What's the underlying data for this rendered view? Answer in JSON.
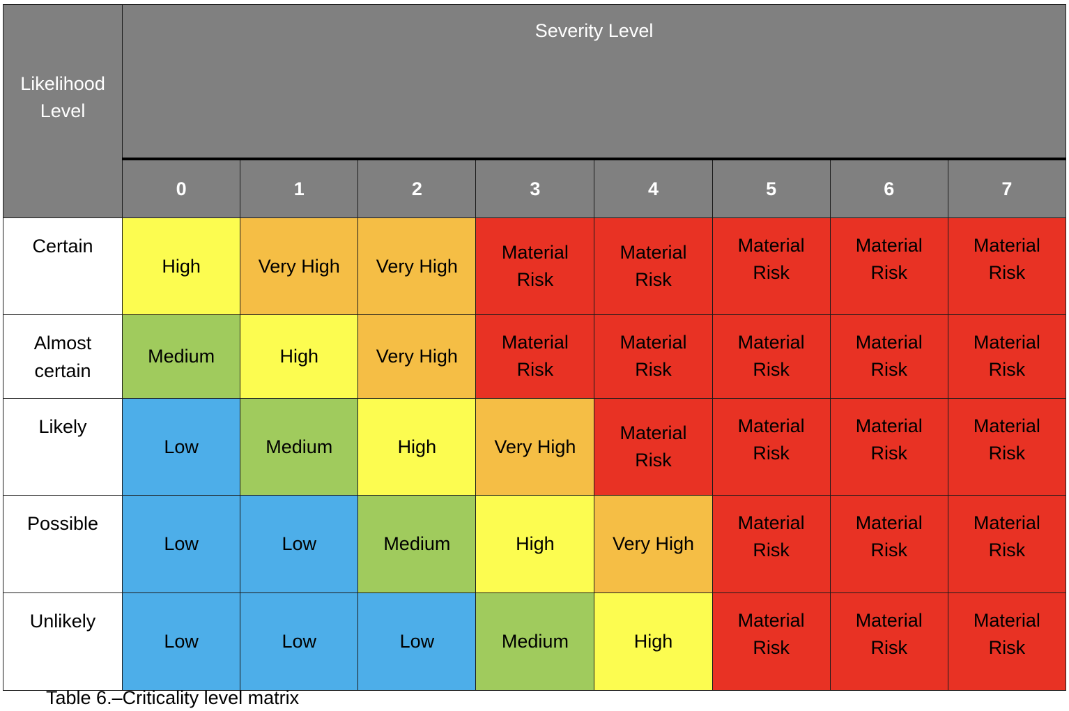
{
  "table": {
    "likelihood_header": [
      "Likelihood",
      "Level"
    ],
    "severity_header": "Severity Level",
    "severity_levels": [
      "0",
      "1",
      "2",
      "3",
      "4",
      "5",
      "6",
      "7"
    ],
    "colors": {
      "Low": "#4daee9",
      "Medium": "#a0cb5d",
      "High": "#fcfc50",
      "Very High": "#f5be45",
      "Material Risk": "#e83224"
    },
    "rows": [
      {
        "label": [
          "Certain"
        ],
        "cells": [
          "High",
          "Very High",
          "Very High",
          "Material Risk",
          "Material Risk",
          "Material Risk",
          "Material Risk",
          "Material Risk"
        ]
      },
      {
        "label": [
          "Almost",
          "certain"
        ],
        "cells": [
          "Medium",
          "High",
          "Very High",
          "Material Risk",
          "Material Risk",
          "Material Risk",
          "Material Risk",
          "Material Risk"
        ]
      },
      {
        "label": [
          "Likely"
        ],
        "cells": [
          "Low",
          "Medium",
          "High",
          "Very High",
          "Material Risk",
          "Material Risk",
          "Material Risk",
          "Material Risk"
        ]
      },
      {
        "label": [
          "Possible"
        ],
        "cells": [
          "Low",
          "Low",
          "Medium",
          "High",
          "Very High",
          "Material Risk",
          "Material Risk",
          "Material Risk"
        ]
      },
      {
        "label": [
          "Unlikely"
        ],
        "cells": [
          "Low",
          "Low",
          "Low",
          "Medium",
          "High",
          "Material Risk",
          "Material Risk",
          "Material Risk"
        ]
      }
    ]
  },
  "caption": "Table 6.–Criticality level matrix"
}
